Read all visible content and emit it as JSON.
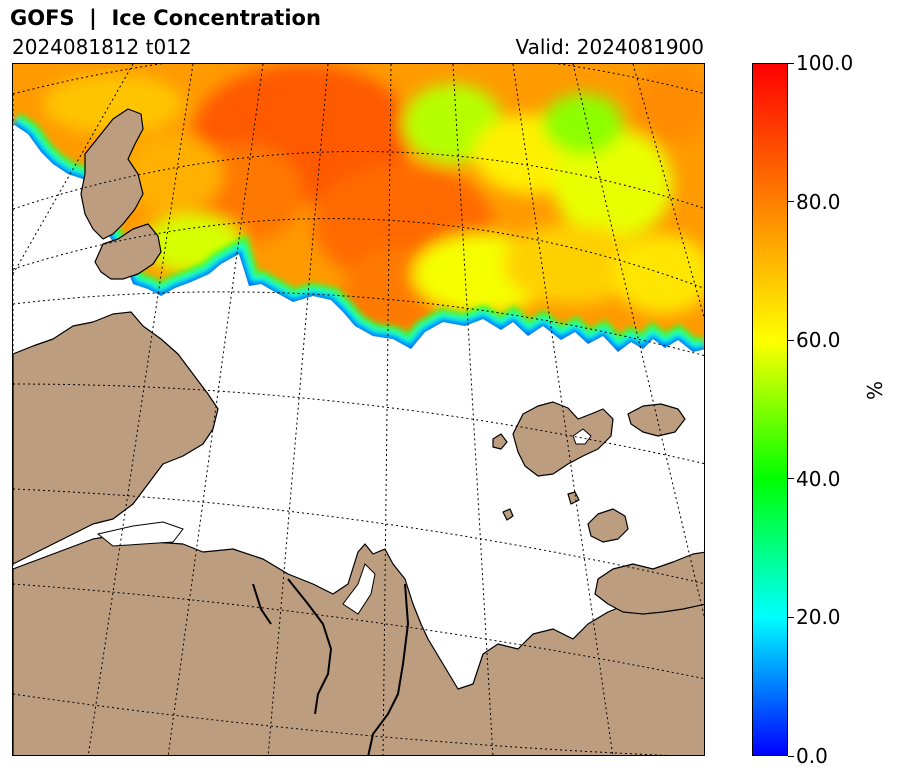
{
  "header": {
    "title": "GOFS  |  Ice Concentration",
    "run": "2024081812 t012",
    "valid": "Valid: 2024081900"
  },
  "colors": {
    "land": "#bd9d7f",
    "ocean": "#ffffff",
    "coastline": "#000000",
    "graticule": "#000000"
  },
  "colorbar": {
    "unit": "%",
    "min": 0.0,
    "max": 100.0,
    "ticks": [
      "0.0",
      "20.0",
      "40.0",
      "60.0",
      "80.0",
      "100.0"
    ],
    "colormap": [
      "#0000ff",
      "#00ffff",
      "#00ff00",
      "#ffff00",
      "#ff8000",
      "#ff0000"
    ]
  }
}
